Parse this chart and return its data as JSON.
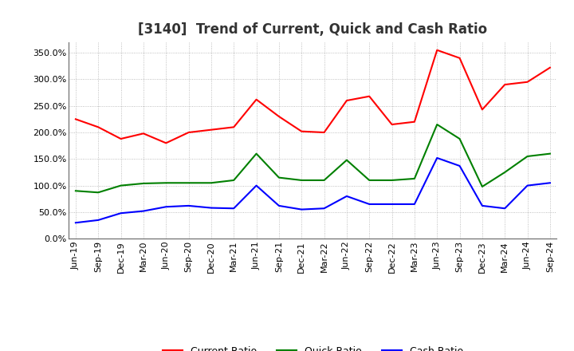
{
  "title": "[3140]  Trend of Current, Quick and Cash Ratio",
  "x_labels": [
    "Jun-19",
    "Sep-19",
    "Dec-19",
    "Mar-20",
    "Jun-20",
    "Sep-20",
    "Dec-20",
    "Mar-21",
    "Jun-21",
    "Sep-21",
    "Dec-21",
    "Mar-22",
    "Jun-22",
    "Sep-22",
    "Dec-22",
    "Mar-23",
    "Jun-23",
    "Sep-23",
    "Dec-23",
    "Mar-24",
    "Jun-24",
    "Sep-24"
  ],
  "current_ratio": [
    225,
    210,
    188,
    198,
    180,
    200,
    205,
    210,
    262,
    230,
    202,
    200,
    260,
    268,
    215,
    220,
    355,
    340,
    243,
    290,
    295,
    322
  ],
  "quick_ratio": [
    90,
    87,
    100,
    104,
    105,
    105,
    105,
    110,
    160,
    115,
    110,
    110,
    148,
    110,
    110,
    113,
    215,
    188,
    98,
    125,
    155,
    160
  ],
  "cash_ratio": [
    30,
    35,
    48,
    52,
    60,
    62,
    58,
    57,
    100,
    62,
    55,
    57,
    80,
    65,
    65,
    65,
    152,
    137,
    62,
    57,
    100,
    105
  ],
  "current_color": "#ff0000",
  "quick_color": "#008000",
  "cash_color": "#0000ff",
  "bg_color": "#ffffff",
  "plot_bg_color": "#ffffff",
  "grid_color": "#999999",
  "ylim": [
    0,
    370
  ],
  "yticks": [
    0,
    50,
    100,
    150,
    200,
    250,
    300,
    350
  ],
  "legend_labels": [
    "Current Ratio",
    "Quick Ratio",
    "Cash Ratio"
  ],
  "title_fontsize": 12,
  "tick_fontsize": 8,
  "legend_fontsize": 9
}
